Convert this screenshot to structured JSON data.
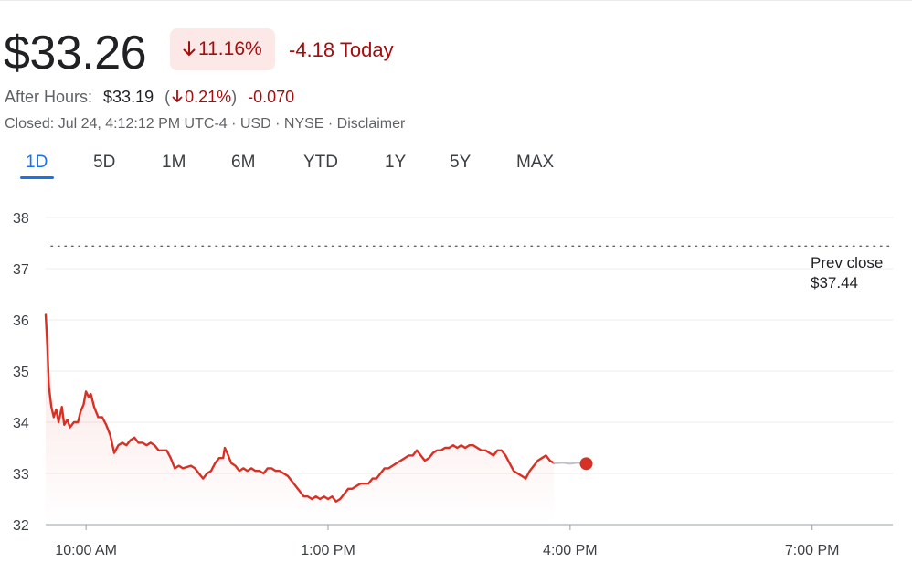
{
  "quote": {
    "price": "$33.26",
    "change_pct": "11.16%",
    "change_today": "-4.18 Today",
    "after_hours": {
      "label": "After Hours:",
      "price": "$33.19",
      "paren_open": "(",
      "pct": "0.21%",
      "paren_close": ")",
      "change": "-0.070"
    },
    "closed_line": "Closed: Jul 24, 4:12:12 PM UTC-4 · USD · NYSE · Disclaimer"
  },
  "icons": {
    "down_arrow": "arrow-down-icon"
  },
  "tabs": [
    {
      "label": "1D",
      "active": true
    },
    {
      "label": "5D",
      "active": false
    },
    {
      "label": "1M",
      "active": false
    },
    {
      "label": "6M",
      "active": false
    },
    {
      "label": "YTD",
      "active": false
    },
    {
      "label": "1Y",
      "active": false
    },
    {
      "label": "5Y",
      "active": false
    },
    {
      "label": "MAX",
      "active": false
    }
  ],
  "prev_close": {
    "label": "Prev close",
    "value": "$37.44"
  },
  "colors": {
    "down": "#d93025",
    "down_text": "#a50e0e",
    "badge_bg": "#fce8e6",
    "accent": "#1a73e8",
    "after_hours_line": "#bdc1c6"
  },
  "chart_data": {
    "type": "line",
    "title": "",
    "xlabel": "",
    "ylabel": "",
    "x_ticks": [
      "10:00 AM",
      "1:00 PM",
      "4:00 PM",
      "7:00 PM"
    ],
    "x_ticks_hours": [
      10,
      13,
      16,
      19
    ],
    "x_range_hours": [
      9.5,
      20
    ],
    "y_ticks": [
      32,
      33,
      34,
      35,
      36,
      37,
      38
    ],
    "ylim": [
      32,
      38
    ],
    "grid": true,
    "prev_close": 37.44,
    "series": [
      {
        "session": "regular",
        "points": [
          [
            9.5,
            36.1
          ],
          [
            9.52,
            35.5
          ],
          [
            9.54,
            34.7
          ],
          [
            9.57,
            34.3
          ],
          [
            9.6,
            34.1
          ],
          [
            9.63,
            34.25
          ],
          [
            9.66,
            34.0
          ],
          [
            9.7,
            34.3
          ],
          [
            9.73,
            33.95
          ],
          [
            9.77,
            34.05
          ],
          [
            9.8,
            33.9
          ],
          [
            9.85,
            34.0
          ],
          [
            9.9,
            34.0
          ],
          [
            9.93,
            34.2
          ],
          [
            9.97,
            34.35
          ],
          [
            10.0,
            34.6
          ],
          [
            10.03,
            34.5
          ],
          [
            10.06,
            34.55
          ],
          [
            10.1,
            34.3
          ],
          [
            10.15,
            34.1
          ],
          [
            10.2,
            34.1
          ],
          [
            10.25,
            33.95
          ],
          [
            10.3,
            33.75
          ],
          [
            10.35,
            33.4
          ],
          [
            10.4,
            33.55
          ],
          [
            10.45,
            33.6
          ],
          [
            10.5,
            33.55
          ],
          [
            10.55,
            33.65
          ],
          [
            10.6,
            33.7
          ],
          [
            10.65,
            33.6
          ],
          [
            10.7,
            33.6
          ],
          [
            10.75,
            33.55
          ],
          [
            10.8,
            33.6
          ],
          [
            10.85,
            33.55
          ],
          [
            10.9,
            33.45
          ],
          [
            11.0,
            33.45
          ],
          [
            11.05,
            33.3
          ],
          [
            11.1,
            33.1
          ],
          [
            11.15,
            33.15
          ],
          [
            11.2,
            33.1
          ],
          [
            11.3,
            33.15
          ],
          [
            11.35,
            33.1
          ],
          [
            11.4,
            33.0
          ],
          [
            11.45,
            32.9
          ],
          [
            11.5,
            33.0
          ],
          [
            11.55,
            33.05
          ],
          [
            11.6,
            33.2
          ],
          [
            11.65,
            33.3
          ],
          [
            11.7,
            33.3
          ],
          [
            11.72,
            33.5
          ],
          [
            11.75,
            33.4
          ],
          [
            11.8,
            33.2
          ],
          [
            11.85,
            33.15
          ],
          [
            11.9,
            33.05
          ],
          [
            11.95,
            33.1
          ],
          [
            12.0,
            33.05
          ],
          [
            12.05,
            33.1
          ],
          [
            12.1,
            33.05
          ],
          [
            12.15,
            33.05
          ],
          [
            12.2,
            33.0
          ],
          [
            12.25,
            33.1
          ],
          [
            12.3,
            33.1
          ],
          [
            12.35,
            33.05
          ],
          [
            12.4,
            33.05
          ],
          [
            12.45,
            33.0
          ],
          [
            12.5,
            32.95
          ],
          [
            12.55,
            32.85
          ],
          [
            12.6,
            32.75
          ],
          [
            12.65,
            32.65
          ],
          [
            12.7,
            32.55
          ],
          [
            12.75,
            32.55
          ],
          [
            12.8,
            32.5
          ],
          [
            12.85,
            32.55
          ],
          [
            12.9,
            32.5
          ],
          [
            12.95,
            32.55
          ],
          [
            13.0,
            32.5
          ],
          [
            13.05,
            32.55
          ],
          [
            13.1,
            32.45
          ],
          [
            13.15,
            32.5
          ],
          [
            13.2,
            32.6
          ],
          [
            13.25,
            32.7
          ],
          [
            13.3,
            32.7
          ],
          [
            13.35,
            32.75
          ],
          [
            13.4,
            32.8
          ],
          [
            13.45,
            32.8
          ],
          [
            13.5,
            32.8
          ],
          [
            13.55,
            32.9
          ],
          [
            13.6,
            32.9
          ],
          [
            13.65,
            33.0
          ],
          [
            13.7,
            33.1
          ],
          [
            13.75,
            33.1
          ],
          [
            13.8,
            33.15
          ],
          [
            13.85,
            33.2
          ],
          [
            13.9,
            33.25
          ],
          [
            13.95,
            33.3
          ],
          [
            14.0,
            33.35
          ],
          [
            14.05,
            33.35
          ],
          [
            14.1,
            33.45
          ],
          [
            14.15,
            33.35
          ],
          [
            14.2,
            33.25
          ],
          [
            14.25,
            33.3
          ],
          [
            14.3,
            33.4
          ],
          [
            14.35,
            33.45
          ],
          [
            14.4,
            33.45
          ],
          [
            14.45,
            33.5
          ],
          [
            14.5,
            33.5
          ],
          [
            14.55,
            33.55
          ],
          [
            14.6,
            33.5
          ],
          [
            14.65,
            33.55
          ],
          [
            14.7,
            33.5
          ],
          [
            14.75,
            33.55
          ],
          [
            14.8,
            33.55
          ],
          [
            14.85,
            33.5
          ],
          [
            14.9,
            33.45
          ],
          [
            14.95,
            33.45
          ],
          [
            15.0,
            33.4
          ],
          [
            15.05,
            33.35
          ],
          [
            15.1,
            33.45
          ],
          [
            15.15,
            33.45
          ],
          [
            15.2,
            33.35
          ],
          [
            15.25,
            33.2
          ],
          [
            15.3,
            33.05
          ],
          [
            15.35,
            33.0
          ],
          [
            15.4,
            32.95
          ],
          [
            15.45,
            32.9
          ],
          [
            15.5,
            33.05
          ],
          [
            15.55,
            33.15
          ],
          [
            15.6,
            33.25
          ],
          [
            15.65,
            33.3
          ],
          [
            15.7,
            33.35
          ],
          [
            15.75,
            33.25
          ],
          [
            15.8,
            33.2
          ]
        ]
      },
      {
        "session": "after_hours",
        "points": [
          [
            15.8,
            33.2
          ],
          [
            15.85,
            33.2
          ],
          [
            15.9,
            33.21
          ],
          [
            15.95,
            33.2
          ],
          [
            16.0,
            33.19
          ],
          [
            16.05,
            33.2
          ],
          [
            16.1,
            33.21
          ],
          [
            16.15,
            33.19
          ],
          [
            16.2,
            33.19
          ]
        ]
      }
    ]
  }
}
